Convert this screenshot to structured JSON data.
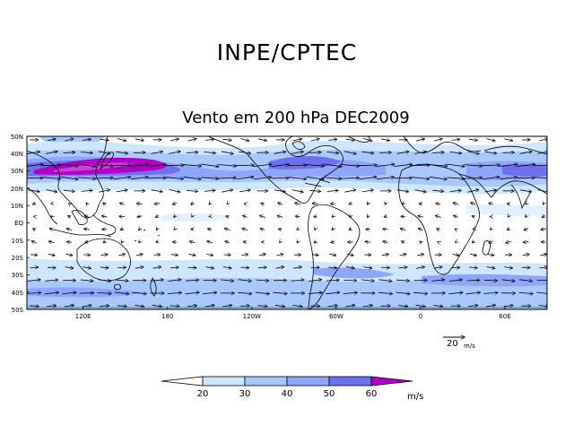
{
  "header": {
    "title": "INPE/CPTEC",
    "subtitle": "Vento em 200 hPa DEC2009"
  },
  "map": {
    "lat_labels": [
      "50N",
      "40N",
      "30N",
      "20N",
      "10N",
      "EQ",
      "10S",
      "20S",
      "30S",
      "40S",
      "50S"
    ],
    "lon_labels": [
      "120E",
      "180",
      "120W",
      "60W",
      "0",
      "60E"
    ],
    "lon_label_values": [
      120,
      180,
      240,
      300,
      360,
      420
    ],
    "lon_range": [
      80,
      450
    ],
    "lat_range": [
      -50,
      50
    ],
    "reference_vector": {
      "value": "20",
      "unit": "m/s"
    }
  },
  "legend": {
    "levels": [
      "20",
      "30",
      "40",
      "50",
      "60"
    ],
    "unit": "m/s",
    "colors": [
      "#ffffff",
      "#cfe6ff",
      "#a9c8ff",
      "#8fa6ff",
      "#6f70f0",
      "#5b3ee0",
      "#b000c8"
    ]
  }
}
